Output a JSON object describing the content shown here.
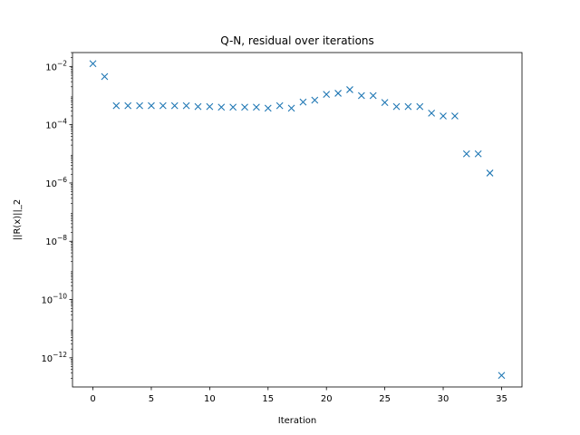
{
  "chart_data": {
    "type": "scatter",
    "title": "Q-N, residual over iterations",
    "xlabel": "Iteration",
    "ylabel": "||R(x)||_2",
    "xlim": [
      -1.75,
      36.75
    ],
    "ylim": [
      1e-13,
      0.03
    ],
    "yscale": "log",
    "x_ticks": [
      0,
      5,
      10,
      15,
      20,
      25,
      30,
      35
    ],
    "y_ticks": [
      {
        "exp": -12,
        "mantissa": "10",
        "label": "−12"
      },
      {
        "exp": -10,
        "mantissa": "10",
        "label": "−10"
      },
      {
        "exp": -8,
        "mantissa": "10",
        "label": "−8"
      },
      {
        "exp": -6,
        "mantissa": "10",
        "label": "−6"
      },
      {
        "exp": -4,
        "mantissa": "10",
        "label": "−4"
      },
      {
        "exp": -2,
        "mantissa": "10",
        "label": "−2"
      }
    ],
    "grid": false,
    "marker": "x",
    "color": "#1f77b4",
    "series": [
      {
        "x": [
          0,
          1,
          2,
          3,
          4,
          5,
          6,
          7,
          8,
          9,
          10,
          11,
          12,
          13,
          14,
          15,
          16,
          17,
          18,
          19,
          20,
          21,
          22,
          23,
          24,
          25,
          26,
          27,
          28,
          29,
          30,
          31,
          32,
          33,
          34,
          35
        ],
        "y": [
          0.0125,
          0.0045,
          0.00045,
          0.00045,
          0.00045,
          0.00045,
          0.00045,
          0.00045,
          0.00045,
          0.00042,
          0.00042,
          0.0004,
          0.0004,
          0.0004,
          0.0004,
          0.00037,
          0.00045,
          0.00037,
          0.0006,
          0.0007,
          0.0011,
          0.0012,
          0.0016,
          0.001,
          0.001,
          0.00058,
          0.00042,
          0.00042,
          0.00042,
          0.00025,
          0.0002,
          0.0002,
          1e-05,
          1e-05,
          2.2e-06,
          2.5e-13
        ]
      }
    ]
  }
}
